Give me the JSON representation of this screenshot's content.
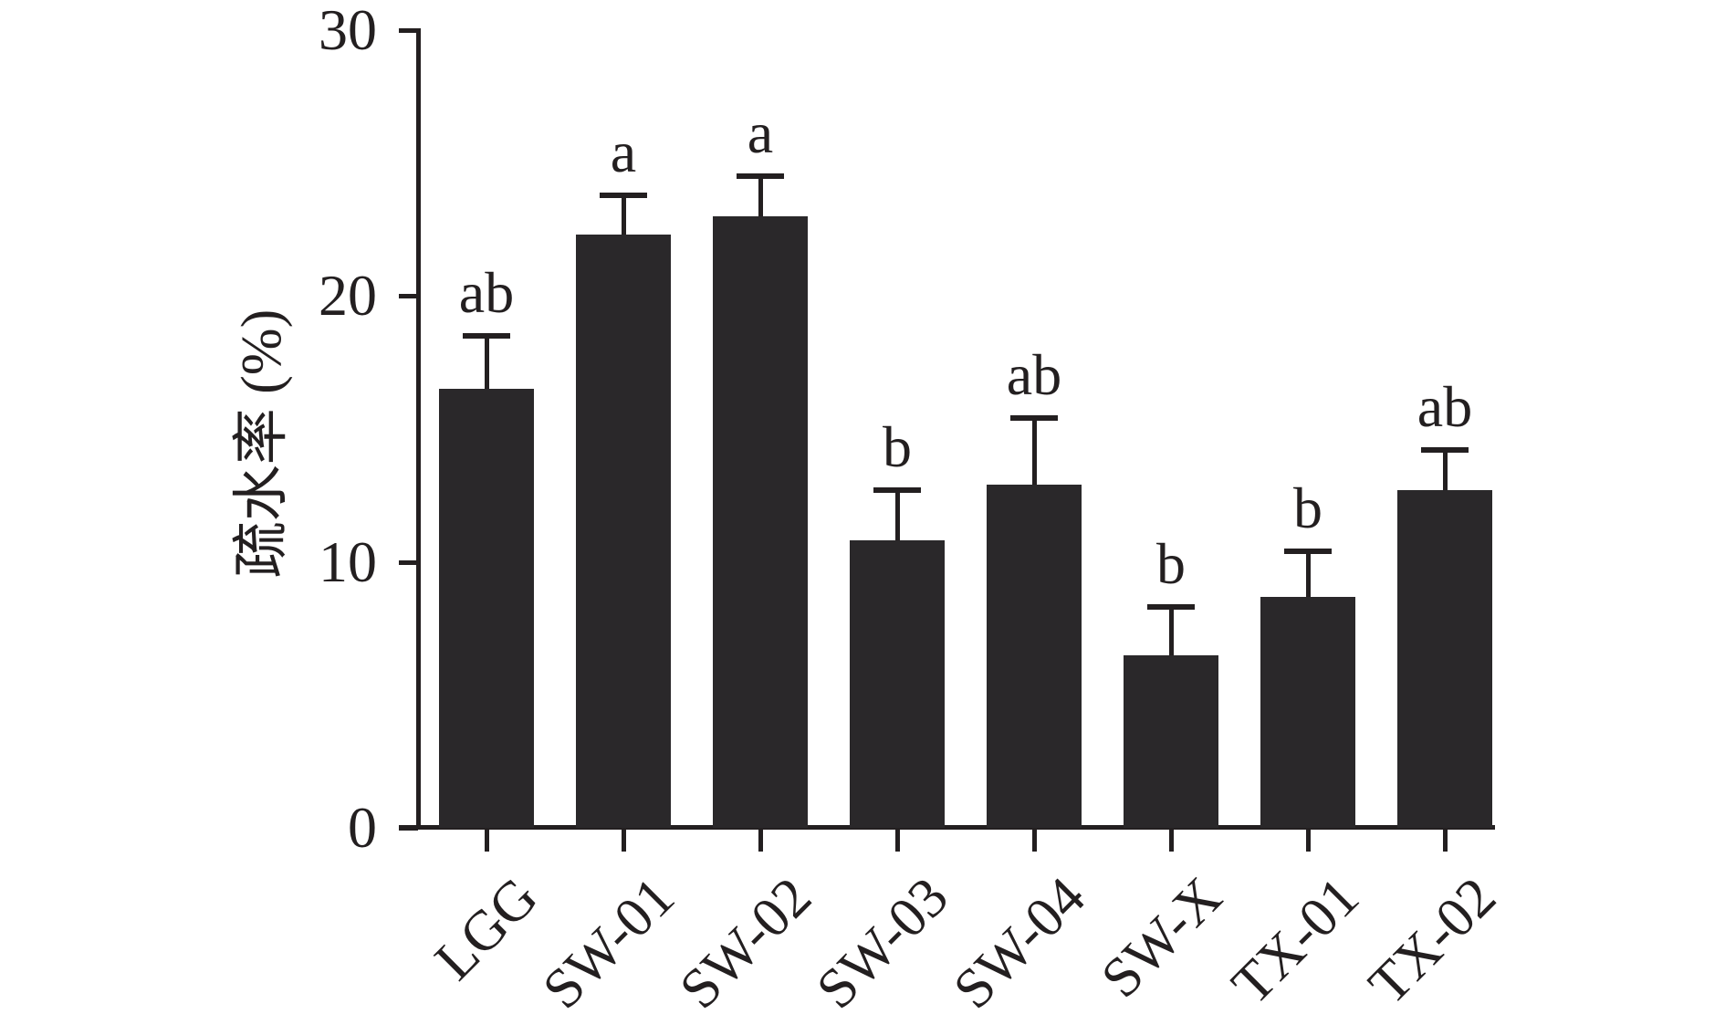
{
  "figure": {
    "background": "#ffffff"
  },
  "chart_data": {
    "type": "bar",
    "title": "",
    "xlabel": "",
    "ylabel": "疏水率 (%)",
    "ylim": [
      0,
      30
    ],
    "yticks": [
      0,
      10,
      20,
      30
    ],
    "categories": [
      "LGG",
      "SW-01",
      "SW-02",
      "SW-03",
      "SW-04",
      "SW-X",
      "TX-01",
      "TX-02"
    ],
    "values": [
      16.5,
      22.3,
      23.0,
      10.8,
      12.9,
      6.5,
      8.7,
      12.7
    ],
    "errors": [
      2.0,
      1.5,
      1.5,
      1.9,
      2.5,
      1.8,
      1.7,
      1.5
    ],
    "error_direction": "upper",
    "sig_labels": [
      "ab",
      "a",
      "a",
      "b",
      "ab",
      "b",
      "b",
      "ab"
    ],
    "bar_color": "#2a282a",
    "axis_color": "#231f20",
    "grid": false,
    "legend_position": "none",
    "x_tick_rotation_deg": 45
  }
}
